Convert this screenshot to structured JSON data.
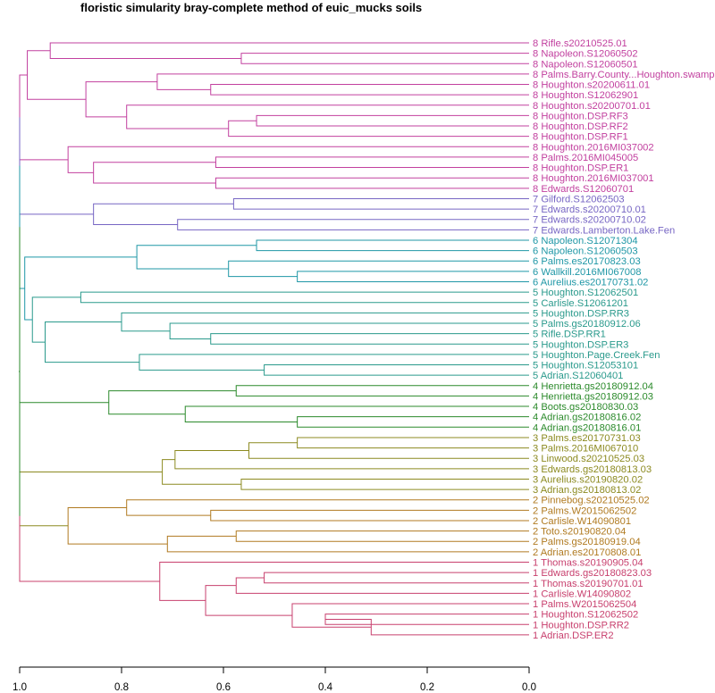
{
  "title": "floristic simularity bray-complete  method of euic_mucks soils",
  "chart_data": {
    "type": "dendrogram",
    "orientation": "horizontal",
    "xlim": [
      1.0,
      0.0
    ],
    "ticks": [
      1.0,
      0.8,
      0.6,
      0.4,
      0.2,
      0.0
    ],
    "tick_labels": [
      "1.0",
      "0.8",
      "0.6",
      "0.4",
      "0.2",
      "0.0"
    ],
    "colors": {
      "8": "#c2409f",
      "7": "#7766c4",
      "6": "#1f97a6",
      "5": "#2a9a8c",
      "4": "#2b8a2b",
      "3": "#8c8a20",
      "2": "#b07a20",
      "1": "#c8406e"
    },
    "leaves": [
      {
        "label": "8 Rifle.s20210525.01",
        "group": "8"
      },
      {
        "label": "8 Napoleon.S12060502",
        "group": "8"
      },
      {
        "label": "8 Napoleon.S12060501",
        "group": "8"
      },
      {
        "label": "8 Palms.Barry.County...Houghton.swamp",
        "group": "8"
      },
      {
        "label": "8 Houghton.s20200611.01",
        "group": "8"
      },
      {
        "label": "8 Houghton.S12062901",
        "group": "8"
      },
      {
        "label": "8 Houghton.s20200701.01",
        "group": "8"
      },
      {
        "label": "8 Houghton.DSP.RF3",
        "group": "8"
      },
      {
        "label": "8 Houghton.DSP.RF2",
        "group": "8"
      },
      {
        "label": "8 Houghton.DSP.RF1",
        "group": "8"
      },
      {
        "label": "8 Houghton.2016MI037002",
        "group": "8"
      },
      {
        "label": "8 Palms.2016MI045005",
        "group": "8"
      },
      {
        "label": "8 Houghton.DSP.ER1",
        "group": "8"
      },
      {
        "label": "8 Houghton.2016MI037001",
        "group": "8"
      },
      {
        "label": "8 Edwards.S12060701",
        "group": "8"
      },
      {
        "label": "7 Gilford.S12062503",
        "group": "7"
      },
      {
        "label": "7 Edwards.s20200710.01",
        "group": "7"
      },
      {
        "label": "7 Edwards.s20200710.02",
        "group": "7"
      },
      {
        "label": "7 Edwards.Lamberton.Lake.Fen",
        "group": "7"
      },
      {
        "label": "6 Napoleon.S12071304",
        "group": "6"
      },
      {
        "label": "6 Napoleon.S12060503",
        "group": "6"
      },
      {
        "label": "6 Palms.es20170823.03",
        "group": "6"
      },
      {
        "label": "6 Wallkill.2016MI067008",
        "group": "6"
      },
      {
        "label": "6 Aurelius.es20170731.02",
        "group": "6"
      },
      {
        "label": "5 Houghton.S12062501",
        "group": "5"
      },
      {
        "label": "5 Carlisle.S12061201",
        "group": "5"
      },
      {
        "label": "5 Houghton.DSP.RR3",
        "group": "5"
      },
      {
        "label": "5 Palms.gs20180912.06",
        "group": "5"
      },
      {
        "label": "5 Rifle.DSP.RR1",
        "group": "5"
      },
      {
        "label": "5 Houghton.DSP.ER3",
        "group": "5"
      },
      {
        "label": "5 Houghton.Page.Creek.Fen",
        "group": "5"
      },
      {
        "label": "5 Houghton.S12053101",
        "group": "5"
      },
      {
        "label": "5 Adrian.S12060401",
        "group": "5"
      },
      {
        "label": "4 Henrietta.gs20180912.04",
        "group": "4"
      },
      {
        "label": "4 Henrietta.gs20180912.03",
        "group": "4"
      },
      {
        "label": "4 Boots.gs20180830.03",
        "group": "4"
      },
      {
        "label": "4 Adrian.gs20180816.02",
        "group": "4"
      },
      {
        "label": "4 Adrian.gs20180816.01",
        "group": "4"
      },
      {
        "label": "3 Palms.es20170731.03",
        "group": "3"
      },
      {
        "label": "3 Palms.2016MI067010",
        "group": "3"
      },
      {
        "label": "3 Linwood.s20210525.03",
        "group": "3"
      },
      {
        "label": "3 Edwards.gs20180813.03",
        "group": "3"
      },
      {
        "label": "3 Aurelius.s20190820.02",
        "group": "3"
      },
      {
        "label": "3 Adrian.gs20180813.02",
        "group": "3"
      },
      {
        "label": "2 Pinnebog.s20210525.02",
        "group": "2"
      },
      {
        "label": "2 Palms.W2015062502",
        "group": "2"
      },
      {
        "label": "2 Carlisle.W14090801",
        "group": "2"
      },
      {
        "label": "2 Toto.s20190820.04",
        "group": "2"
      },
      {
        "label": "2 Palms.gs20180919.04",
        "group": "2"
      },
      {
        "label": "2 Adrian.es20170808.01",
        "group": "2"
      },
      {
        "label": "1 Thomas.s20190905.04",
        "group": "1"
      },
      {
        "label": "1 Edwards.gs20180823.03",
        "group": "1"
      },
      {
        "label": "1 Thomas.s20190701.01",
        "group": "1"
      },
      {
        "label": "1 Carlisle.W14090802",
        "group": "1"
      },
      {
        "label": "1 Palms.W2015062504",
        "group": "1"
      },
      {
        "label": "1 Houghton.S12062502",
        "group": "1"
      },
      {
        "label": "1 Houghton.DSP.RR2",
        "group": "1"
      },
      {
        "label": "1 Adrian.DSP.ER2",
        "group": "1"
      }
    ],
    "merges": [
      {
        "a": 1,
        "b": 2,
        "h": 0.565,
        "g": "8"
      },
      {
        "a": 0,
        "b": "m0",
        "h": 0.94,
        "g": "8"
      },
      {
        "a": 7,
        "b": 8,
        "h": 0.535,
        "g": "8"
      },
      {
        "a": "m2",
        "b": 9,
        "h": 0.59,
        "g": "8"
      },
      {
        "a": 6,
        "b": "m3",
        "h": 0.79,
        "g": "8"
      },
      {
        "a": 4,
        "b": 5,
        "h": 0.625,
        "g": "8"
      },
      {
        "a": 3,
        "b": "m5",
        "h": 0.73,
        "g": "8"
      },
      {
        "a": "m6",
        "b": "m4",
        "h": 0.87,
        "g": "8"
      },
      {
        "a": "m1",
        "b": "m7",
        "h": 0.985,
        "g": "8"
      },
      {
        "a": 11,
        "b": 12,
        "h": 0.615,
        "g": "8"
      },
      {
        "a": 13,
        "b": 14,
        "h": 0.615,
        "g": "8"
      },
      {
        "a": "m9",
        "b": "m10",
        "h": 0.855,
        "g": "8"
      },
      {
        "a": 10,
        "b": "m11",
        "h": 0.905,
        "g": "8"
      },
      {
        "a": "m8",
        "b": "m12",
        "h": 1.0,
        "g": "8"
      },
      {
        "a": 15,
        "b": 16,
        "h": 0.58,
        "g": "7"
      },
      {
        "a": 17,
        "b": 18,
        "h": 0.69,
        "g": "7"
      },
      {
        "a": "m14",
        "b": "m15",
        "h": 0.855,
        "g": "7"
      },
      {
        "a": 19,
        "b": 20,
        "h": 0.535,
        "g": "6"
      },
      {
        "a": 22,
        "b": 23,
        "h": 0.455,
        "g": "6"
      },
      {
        "a": 21,
        "b": "m18",
        "h": 0.59,
        "g": "6"
      },
      {
        "a": "m17",
        "b": "m19",
        "h": 0.77,
        "g": "6"
      },
      {
        "a": 24,
        "b": 25,
        "h": 0.88,
        "g": "5"
      },
      {
        "a": 28,
        "b": 29,
        "h": 0.625,
        "g": "5"
      },
      {
        "a": 27,
        "b": "m22",
        "h": 0.705,
        "g": "5"
      },
      {
        "a": 26,
        "b": "m23",
        "h": 0.8,
        "g": "5"
      },
      {
        "a": 31,
        "b": 32,
        "h": 0.52,
        "g": "5"
      },
      {
        "a": 30,
        "b": "m25",
        "h": 0.765,
        "g": "5"
      },
      {
        "a": "m24",
        "b": "m26",
        "h": 0.95,
        "g": "5"
      },
      {
        "a": "m21",
        "b": "m27",
        "h": 0.975,
        "g": "5"
      },
      {
        "a": "m20",
        "b": "m28",
        "h": 0.99,
        "g": "6"
      },
      {
        "a": 33,
        "b": 34,
        "h": 0.575,
        "g": "4"
      },
      {
        "a": 36,
        "b": 37,
        "h": 0.455,
        "g": "4"
      },
      {
        "a": 35,
        "b": "m31",
        "h": 0.675,
        "g": "4"
      },
      {
        "a": "m30",
        "b": "m32",
        "h": 0.825,
        "g": "4"
      },
      {
        "a": 38,
        "b": 39,
        "h": 0.455,
        "g": "3"
      },
      {
        "a": "m34",
        "b": 40,
        "h": 0.55,
        "g": "3"
      },
      {
        "a": 41,
        "b": "m35",
        "h": 0.695,
        "g": "3"
      },
      {
        "a": 42,
        "b": 43,
        "h": 0.565,
        "g": "3"
      },
      {
        "a": "m36",
        "b": "m37",
        "h": 0.72,
        "g": "3"
      },
      {
        "a": 45,
        "b": 46,
        "h": 0.625,
        "g": "2"
      },
      {
        "a": 44,
        "b": "m39",
        "h": 0.79,
        "g": "2"
      },
      {
        "a": 47,
        "b": 48,
        "h": 0.575,
        "g": "2"
      },
      {
        "a": "m41",
        "b": 49,
        "h": 0.71,
        "g": "2"
      },
      {
        "a": "m40",
        "b": "m42",
        "h": 0.905,
        "g": "2"
      },
      {
        "a": "m38",
        "b": "m43",
        "h": 1.0,
        "g": "3"
      },
      {
        "a": 51,
        "b": 52,
        "h": 0.52,
        "g": "1"
      },
      {
        "a": 53,
        "b": "m45",
        "h": 0.575,
        "g": "1"
      },
      {
        "a": 55,
        "b": 56,
        "h": 0.4,
        "g": "1"
      },
      {
        "a": 57,
        "b": "m47",
        "h": 0.31,
        "g": "1"
      },
      {
        "a": 54,
        "b": "m48",
        "h": 0.465,
        "g": "1"
      },
      {
        "a": "m46",
        "b": "m49",
        "h": 0.635,
        "g": "1"
      },
      {
        "a": 50,
        "b": "m50",
        "h": 0.725,
        "g": "1"
      },
      {
        "a": "m13",
        "b": "m16",
        "h": 1.0,
        "g": "7"
      },
      {
        "a": "m29",
        "b": "m52",
        "h": 1.0,
        "g": "6"
      },
      {
        "a": "m33",
        "b": "m44",
        "h": 1.0,
        "g": "4"
      },
      {
        "a": "m51",
        "b": "m54",
        "h": 1.0,
        "g": "1"
      },
      {
        "a": "m53",
        "b": "m55",
        "h": 1.0,
        "g": "4"
      }
    ]
  }
}
